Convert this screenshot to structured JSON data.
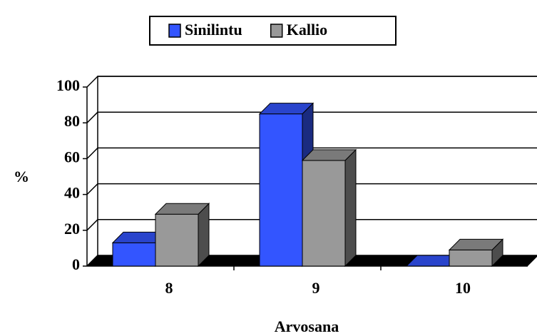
{
  "chart_data": {
    "type": "bar3d",
    "y_label": "%",
    "x_label": "Arvosana",
    "categories": [
      "8",
      "9",
      "10"
    ],
    "series": [
      {
        "name": "Sinilintu",
        "color": "#3355ff",
        "values": [
          13,
          85,
          0
        ]
      },
      {
        "name": "Kallio",
        "color": "#999999",
        "values": [
          29,
          59,
          9
        ]
      }
    ],
    "ylim": [
      0,
      100
    ],
    "yticks": [
      0,
      20,
      40,
      60,
      80,
      100
    ],
    "grid": true,
    "legend": "top"
  }
}
